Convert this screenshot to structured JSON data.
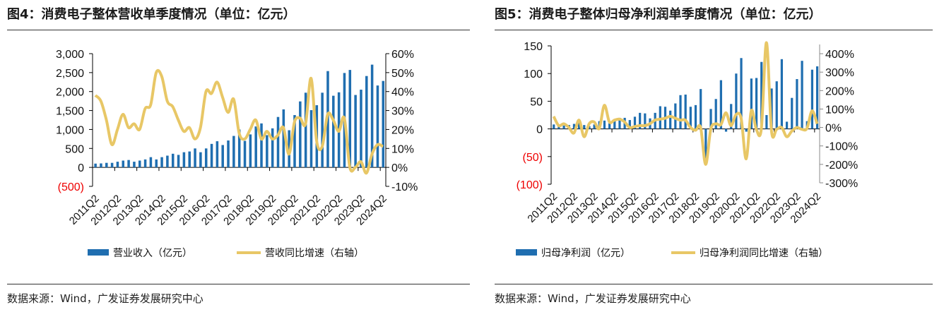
{
  "chart_data": [
    {
      "type": "bar+line",
      "title": "图4：消费电子整体营收单季度情况（单位：亿元）",
      "categories_labels": [
        "2011Q2",
        "2012Q2",
        "2013Q2",
        "2014Q2",
        "2015Q2",
        "2016Q2",
        "2017Q2",
        "2018Q2",
        "2019Q2",
        "2020Q2",
        "2021Q2",
        "2022Q2",
        "2023Q2",
        "2024Q2"
      ],
      "y_left": {
        "ylim": [
          -500,
          3000
        ],
        "ticks": [
          "(500)",
          "0",
          "500",
          "1,000",
          "1,500",
          "2,000",
          "2,500",
          "3,000"
        ]
      },
      "y_right": {
        "ylim": [
          -10,
          60
        ],
        "ticks": [
          "-10%",
          "0%",
          "10%",
          "20%",
          "30%",
          "40%",
          "50%",
          "60%"
        ]
      },
      "series": [
        {
          "name": "营业收入（亿元）",
          "type": "bar",
          "axis": "left",
          "color": "#1f6eb0",
          "values": [
            100,
            105,
            120,
            120,
            150,
            180,
            195,
            150,
            180,
            210,
            270,
            210,
            270,
            310,
            360,
            330,
            400,
            420,
            500,
            400,
            500,
            620,
            690,
            590,
            710,
            830,
            1000,
            700,
            870,
            1080,
            1160,
            850,
            1030,
            1330,
            1530,
            980,
            1380,
            1740,
            1970,
            1510,
            1640,
            1970,
            2540,
            1890,
            1980,
            2490,
            2570,
            1910,
            2050,
            2410,
            2710,
            2160,
            2280
          ]
        },
        {
          "name": "营收同比增速（右轴）",
          "type": "line",
          "axis": "right",
          "color": "#e8c766",
          "values": [
            38,
            35,
            25,
            12,
            20,
            28,
            21,
            23,
            20,
            31,
            33,
            50,
            48,
            35,
            32,
            25,
            19,
            21,
            15,
            21,
            40,
            39,
            45,
            37,
            29,
            36,
            18,
            15,
            20,
            25,
            15,
            19,
            15,
            17,
            21,
            7,
            24,
            26,
            23,
            47,
            14,
            11,
            28,
            25,
            19,
            26,
            0,
            0,
            3,
            -3,
            7,
            12,
            11
          ]
        }
      ],
      "legend": "bottom",
      "source": "数据来源：Wind，广发证券发展研究中心"
    },
    {
      "type": "bar+line",
      "title": "图5：消费电子整体归母净利润单季度情况（单位：亿元）",
      "categories_labels": [
        "2011Q2",
        "2012Q2",
        "2013Q2",
        "2014Q2",
        "2015Q2",
        "2016Q2",
        "2017Q2",
        "2018Q2",
        "2019Q2",
        "2020Q2",
        "2021Q2",
        "2022Q2",
        "2023Q2",
        "2024Q2"
      ],
      "y_left": {
        "ylim": [
          -100,
          150
        ],
        "ticks": [
          "(100)",
          "(50)",
          "0",
          "50",
          "100",
          "150"
        ]
      },
      "y_right": {
        "ylim": [
          -300,
          450
        ],
        "ticks": [
          "-300%",
          "-200%",
          "-100%",
          "0%",
          "100%",
          "200%",
          "300%",
          "400%"
        ]
      },
      "series": [
        {
          "name": "归母净利润（亿元）",
          "type": "bar",
          "axis": "left",
          "color": "#1f6eb0",
          "values": [
            8,
            8,
            6,
            7,
            9,
            15,
            7,
            5,
            8,
            14,
            15,
            10,
            16,
            20,
            20,
            16,
            22,
            29,
            28,
            19,
            29,
            41,
            40,
            33,
            46,
            61,
            62,
            40,
            43,
            72,
            -55,
            36,
            54,
            88,
            -5,
            45,
            100,
            128,
            -5,
            91,
            92,
            121,
            25,
            73,
            86,
            126,
            13,
            56,
            90,
            123,
            14,
            107,
            113
          ]
        },
        {
          "name": "归母净利润同比增速（右轴）",
          "type": "line",
          "axis": "right",
          "color": "#e8c766",
          "values": [
            60,
            10,
            20,
            0,
            -30,
            40,
            -50,
            20,
            30,
            -5,
            120,
            30,
            40,
            45,
            30,
            0,
            5,
            10,
            10,
            20,
            40,
            45,
            50,
            60,
            50,
            40,
            40,
            0,
            -15,
            0,
            -200,
            -10,
            20,
            15,
            80,
            10,
            70,
            50,
            -170,
            90,
            -10,
            -5,
            460,
            -20,
            -10,
            0,
            -50,
            -20,
            0,
            -10,
            -5,
            90,
            20
          ]
        }
      ],
      "legend": "bottom",
      "source": "数据来源：Wind，广发证券发展研究中心"
    }
  ]
}
